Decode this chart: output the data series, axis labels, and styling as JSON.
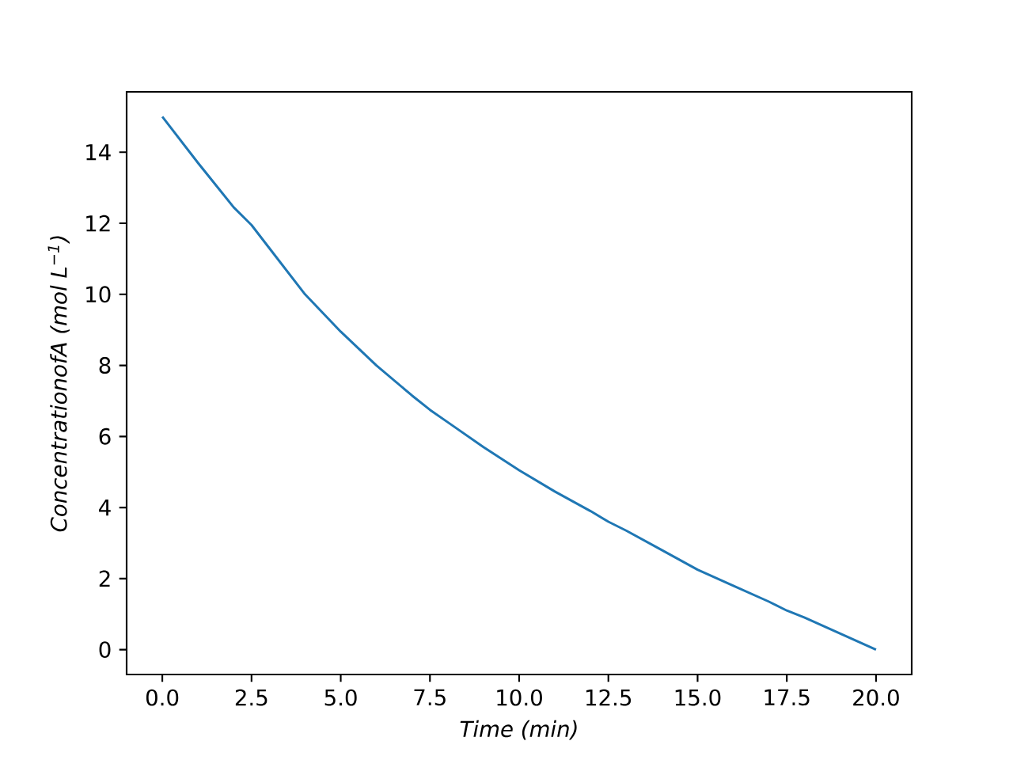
{
  "chart_data": {
    "type": "line",
    "xlabel": "Time (min)",
    "ylabel": "ConcentrationofA (mol L$^{−1}$)",
    "x": [
      0,
      1,
      2,
      2.5,
      3,
      4,
      5,
      6,
      7,
      7.5,
      8,
      9,
      10,
      11,
      12,
      12.5,
      13,
      14,
      15,
      16,
      17,
      17.5,
      18,
      19,
      20
    ],
    "values": [
      15.0,
      13.7,
      12.45,
      11.95,
      11.3,
      10.0,
      8.95,
      8.0,
      7.15,
      6.75,
      6.4,
      5.7,
      5.05,
      4.45,
      3.9,
      3.6,
      3.35,
      2.8,
      2.25,
      1.8,
      1.35,
      1.1,
      0.9,
      0.45,
      0.0
    ],
    "color": "#1f77b4",
    "xlim": [
      -1.0,
      21.0
    ],
    "ylim": [
      -0.7,
      15.7
    ],
    "xticks": [
      {
        "value": 0,
        "label": "0.0"
      },
      {
        "value": 2.5,
        "label": "2.5"
      },
      {
        "value": 5,
        "label": "5.0"
      },
      {
        "value": 7.5,
        "label": "7.5"
      },
      {
        "value": 10,
        "label": "10.0"
      },
      {
        "value": 12.5,
        "label": "12.5"
      },
      {
        "value": 15,
        "label": "15.0"
      },
      {
        "value": 17.5,
        "label": "17.5"
      },
      {
        "value": 20,
        "label": "20.0"
      }
    ],
    "yticks": [
      0,
      2,
      4,
      6,
      8,
      10,
      12,
      14
    ]
  }
}
